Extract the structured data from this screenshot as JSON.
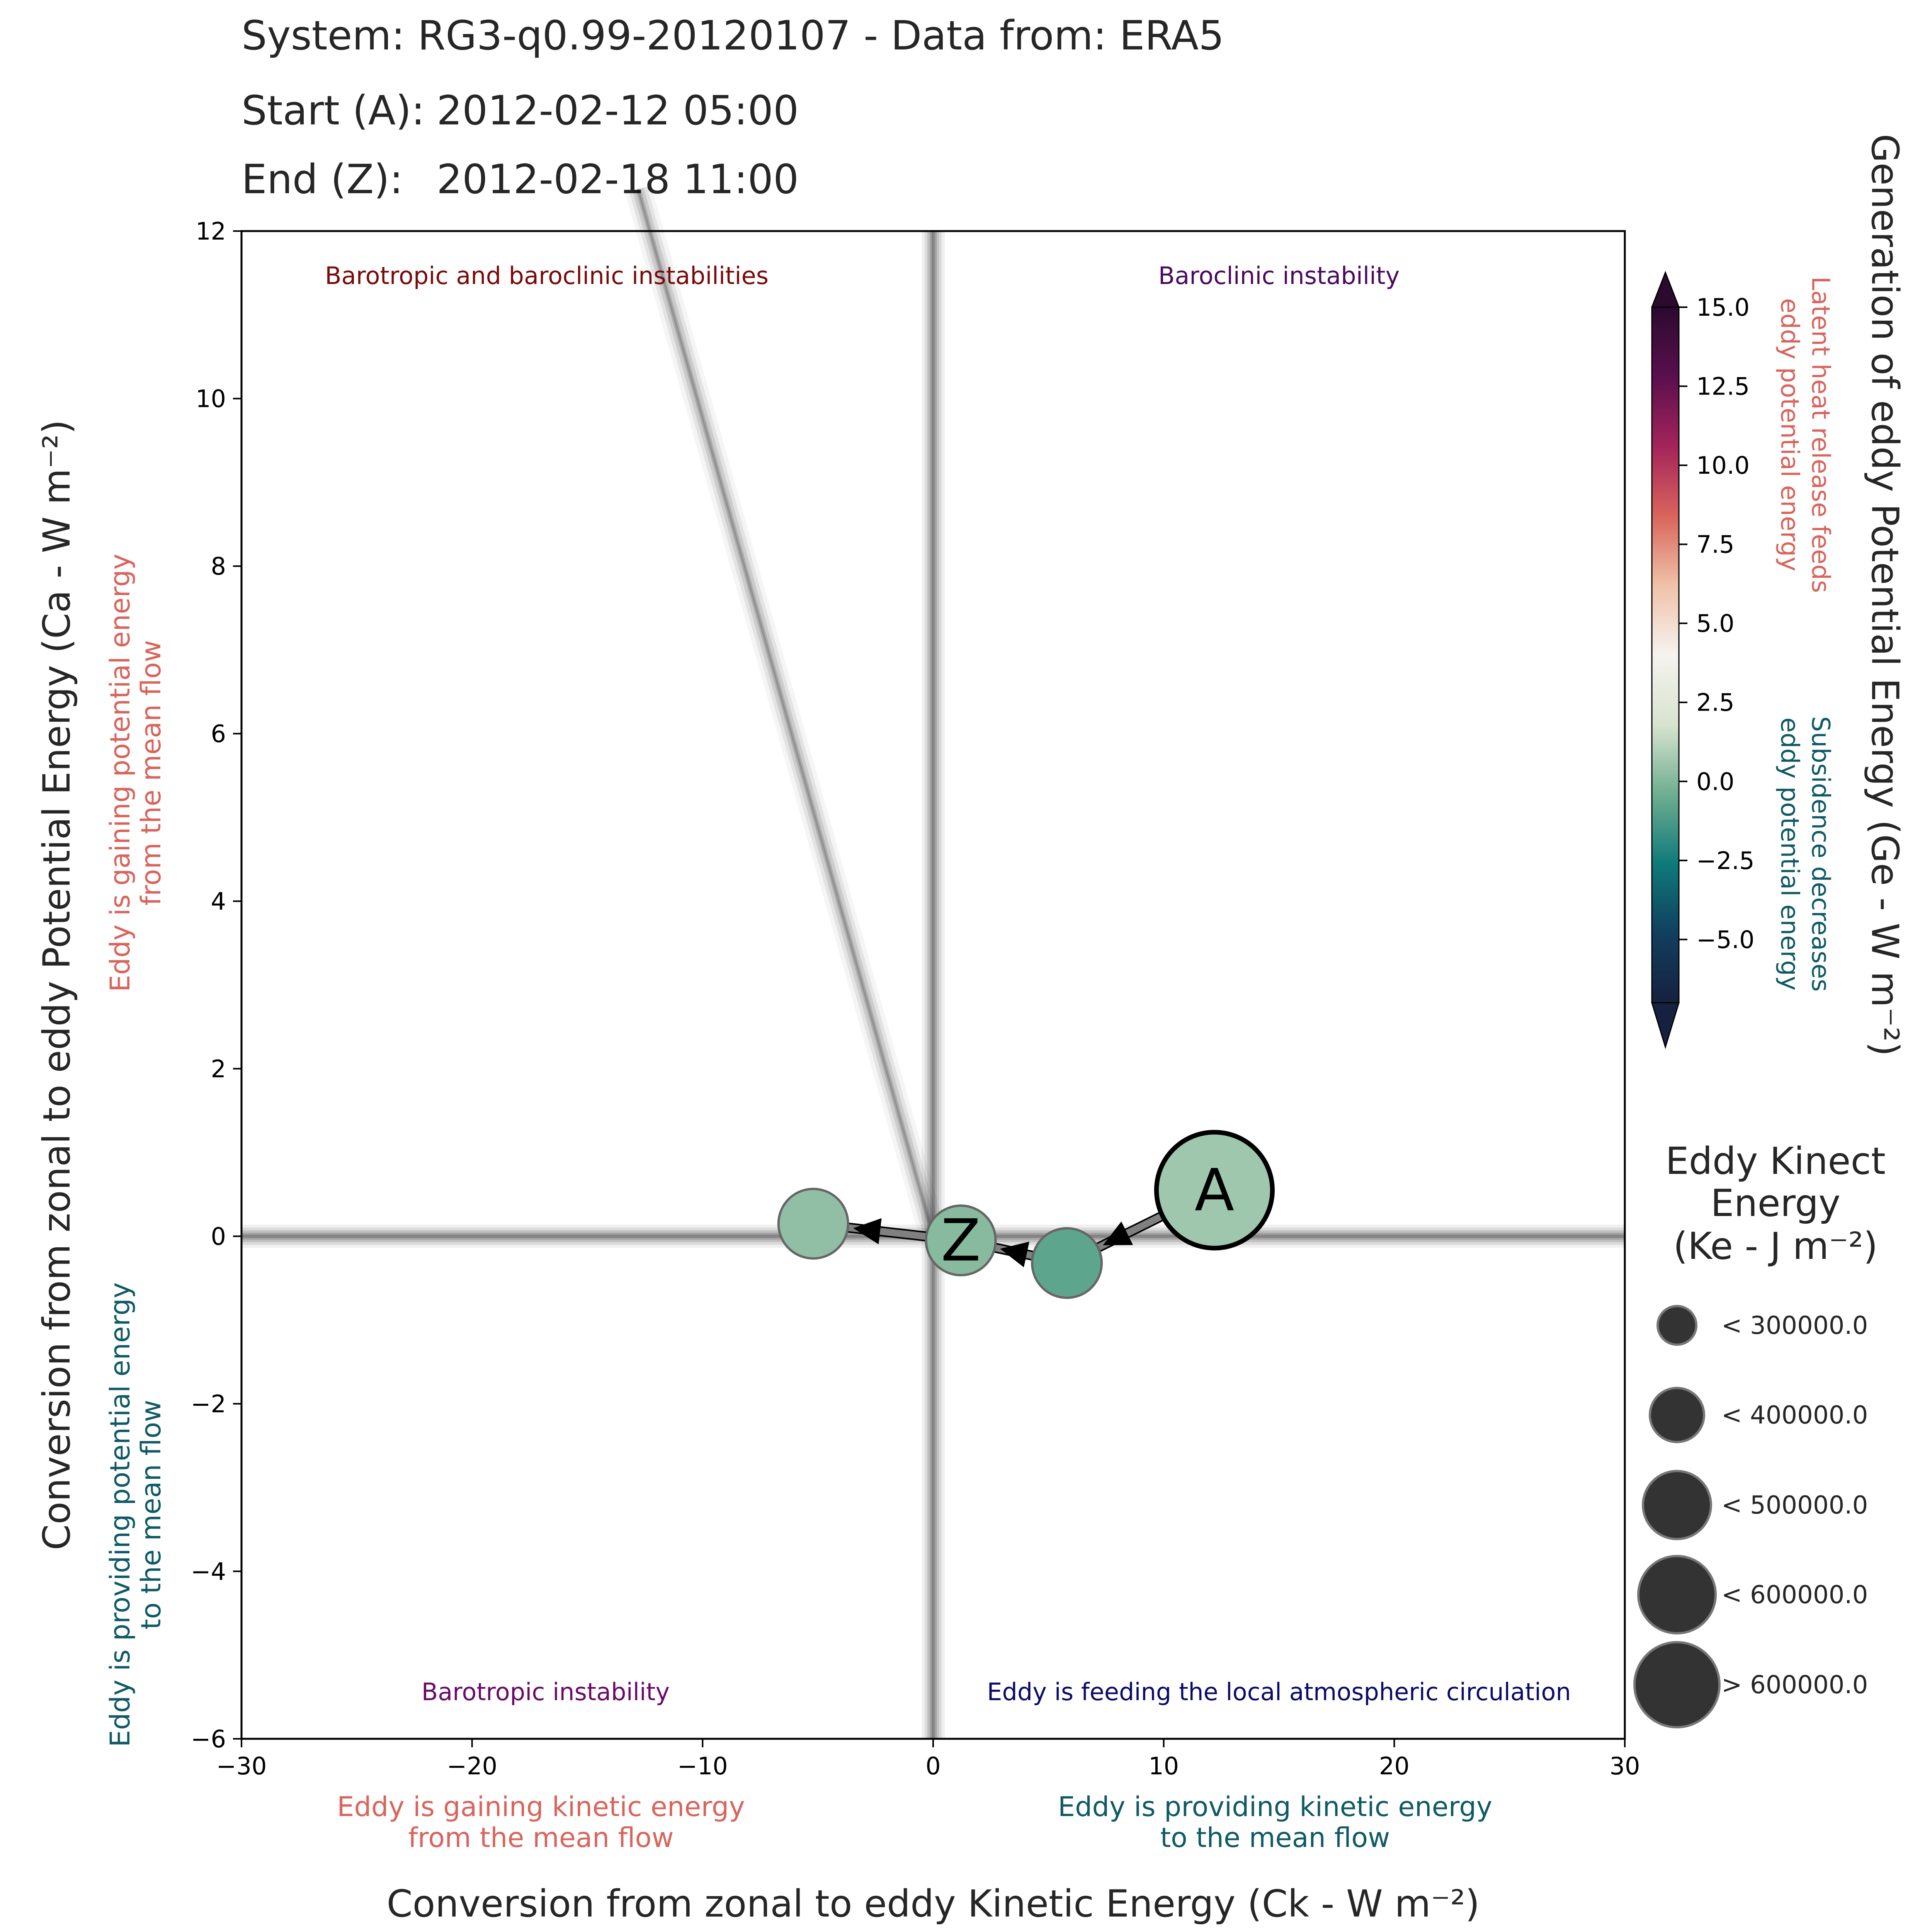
{
  "header": {
    "system_line": "System: RG3-q0.99-20120107 - Data from: ERA5",
    "start_label": "Start (A):",
    "start_value": "2012-02-12 05:00",
    "end_label": "End (Z):",
    "end_value": "2012-02-18 11:00"
  },
  "chart_data": {
    "type": "scatter",
    "xlabel": "Conversion from zonal to eddy Kinetic Energy (Ck -  W m⁻²)",
    "ylabel": "Conversion from zonal to eddy Potential Energy (Ca -  W m⁻²)",
    "xlim": [
      -30,
      30
    ],
    "ylim": [
      -6,
      12
    ],
    "xticks": [
      -30,
      -20,
      -10,
      0,
      10,
      20,
      30
    ],
    "yticks": [
      -6,
      -4,
      -2,
      0,
      2,
      4,
      6,
      8,
      10,
      12
    ],
    "grid": false,
    "quadrant_labels": [
      {
        "text": "Barotropic and baroclinic instabilities",
        "color": "#7a0a0a"
      },
      {
        "text": "Baroclinic instability",
        "color": "#4b0a5e"
      },
      {
        "text": "Barotropic instability",
        "color": "#6a0a6a"
      },
      {
        "text": "Eddy is feeding the local atmospheric circulation",
        "color": "#0a0a6a"
      }
    ],
    "side_labels": {
      "y_top": [
        "Eddy is gaining potential energy",
        "from the mean flow"
      ],
      "y_bottom": [
        "Eddy is providing potential energy",
        "to the mean flow"
      ],
      "x_left": [
        "Eddy is gaining kinetic energy",
        "from the mean flow"
      ],
      "x_right": [
        "Eddy is providing kinetic energy",
        "to the mean flow"
      ],
      "warm_color": "#d9645c",
      "cool_color": "#0f5a66"
    },
    "trajectory": {
      "points": [
        {
          "x": 12.2,
          "y": 0.55,
          "ge": 0.6,
          "ke_class": 4,
          "label": "A"
        },
        {
          "x": 5.8,
          "y": -0.32,
          "ge": -0.8,
          "ke_class": 1,
          "label": ""
        },
        {
          "x": 1.2,
          "y": -0.05,
          "ge": 0.1,
          "ke_class": 1,
          "label": "Z"
        },
        {
          "x": -5.2,
          "y": 0.15,
          "ge": 0.3,
          "ke_class": 1,
          "label": ""
        }
      ],
      "arrow_color": "#808080"
    },
    "reference_lines": {
      "trend_line": {
        "x0": -12.8,
        "y0": 12.5,
        "x1": 0,
        "y1": 0
      }
    },
    "colorbar": {
      "label": "Generation of eddy Potential Energy (Ge -  W m⁻²)",
      "range": [
        -7,
        15
      ],
      "ticks": [
        "15.0",
        "12.5",
        "10.0",
        "7.5",
        "5.0",
        "2.5",
        "0.0",
        "−2.5",
        "−5.0"
      ],
      "tick_values": [
        15,
        12.5,
        10,
        7.5,
        5,
        2.5,
        0,
        -2.5,
        -5
      ],
      "top_note": [
        "Latent heat release feeds",
        "eddy potential energy"
      ],
      "bottom_note": [
        "Subsidence decreases",
        "eddy potential energy"
      ],
      "top_note_color": "#d9645c",
      "bottom_note_color": "#0f5a66",
      "colors": [
        "#15213f",
        "#113f5e",
        "#0f7a7a",
        "#6fae91",
        "#d8e4cf",
        "#f6f3ef",
        "#f0c2a8",
        "#d9645c",
        "#a4245a",
        "#5a0f4e",
        "#2b0a2e"
      ]
    },
    "size_legend": {
      "title": [
        "Eddy Kinect",
        "Energy",
        "(Ke -  J m⁻²)"
      ],
      "items": [
        "< 300000.0",
        "< 400000.0",
        "< 500000.0",
        "< 600000.0",
        "> 600000.0"
      ],
      "marker_color": "#333333"
    }
  }
}
